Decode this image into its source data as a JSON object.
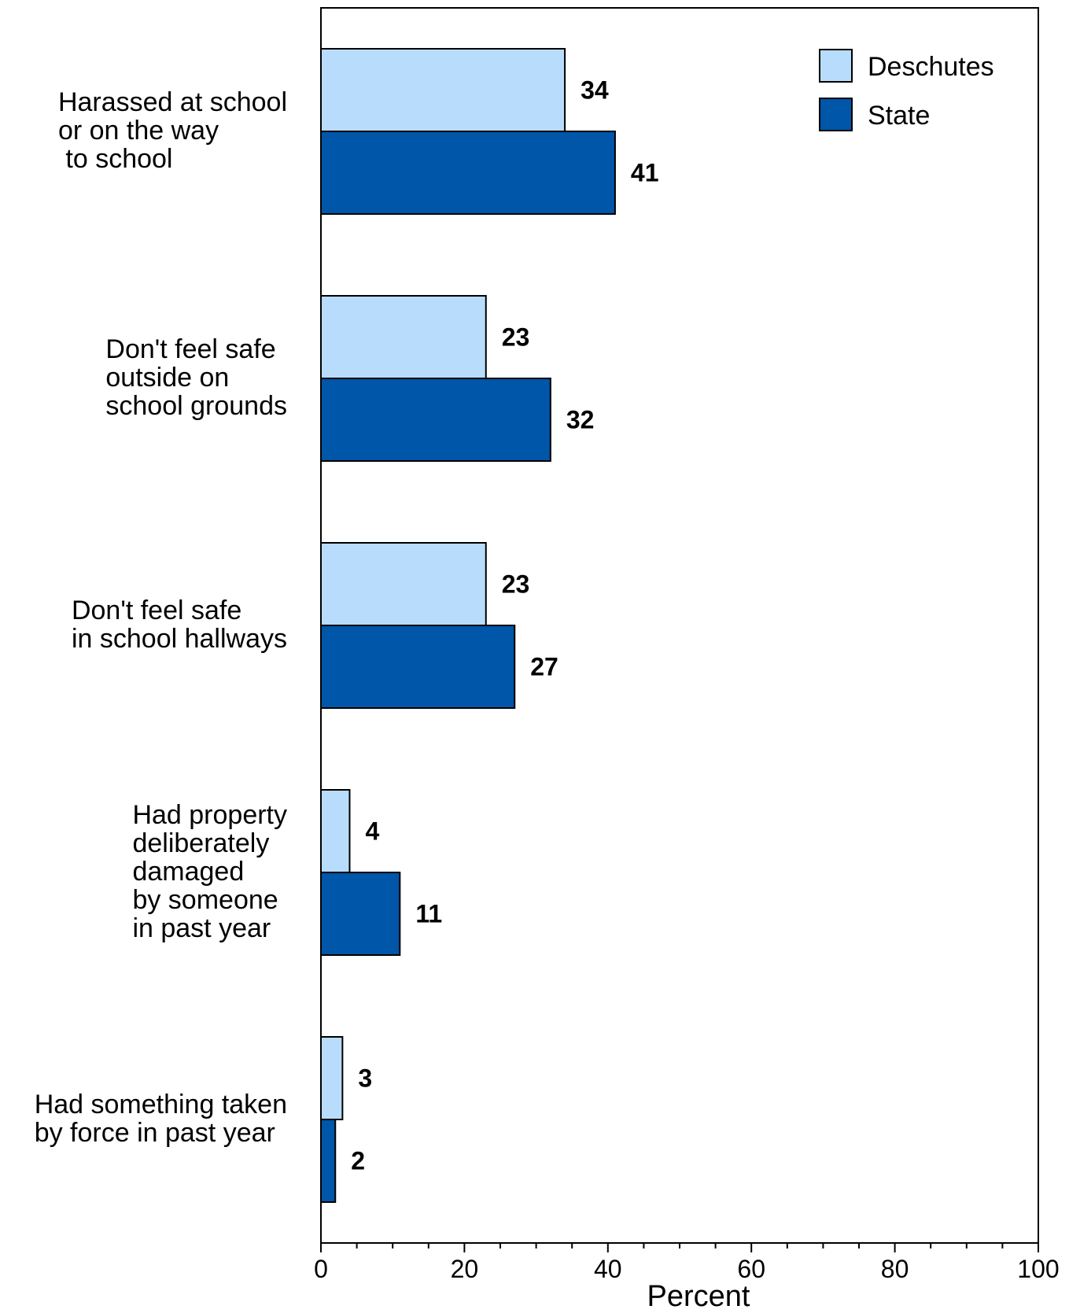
{
  "chart_data": {
    "type": "bar",
    "orientation": "horizontal",
    "title": "",
    "xlabel": "Percent",
    "ylabel": "",
    "xlim": [
      0,
      100
    ],
    "x_ticks": [
      0,
      20,
      40,
      60,
      80,
      100
    ],
    "x_tick_labels": [
      "0",
      "20",
      "40",
      "60",
      "80",
      "100"
    ],
    "grid": false,
    "legend_position": "top-right",
    "categories": [
      [
        "Harassed at school",
        "or on the way",
        " to school"
      ],
      [
        "Don't feel safe",
        "outside on",
        "school grounds"
      ],
      [
        "Don't feel safe",
        "in school hallways"
      ],
      [
        "Had property",
        "deliberately",
        "damaged",
        "by someone",
        "in past year"
      ],
      [
        "Had something taken",
        "by force in past year"
      ]
    ],
    "series": [
      {
        "name": "Deschutes",
        "color": "#b8dcfc",
        "values": [
          34,
          23,
          23,
          4,
          3
        ]
      },
      {
        "name": "State",
        "color": "#0056a8",
        "values": [
          41,
          32,
          27,
          11,
          2
        ]
      }
    ]
  }
}
